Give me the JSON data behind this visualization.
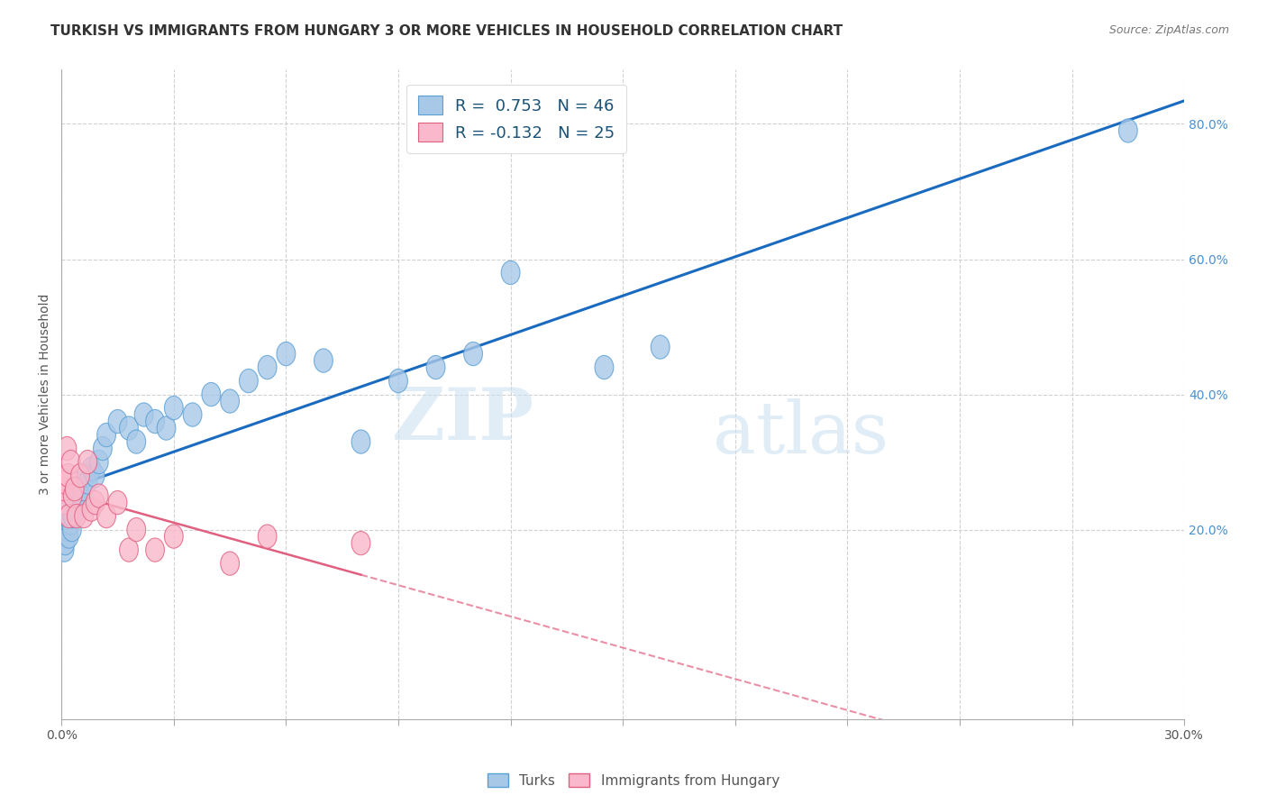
{
  "title": "TURKISH VS IMMIGRANTS FROM HUNGARY 3 OR MORE VEHICLES IN HOUSEHOLD CORRELATION CHART",
  "source": "Source: ZipAtlas.com",
  "ylabel": "3 or more Vehicles in Household",
  "xlim": [
    0.0,
    30.0
  ],
  "ylim": [
    -8.0,
    88.0
  ],
  "right_yticks": [
    20.0,
    40.0,
    60.0,
    80.0
  ],
  "legend_blue_r": "R =  0.753",
  "legend_blue_n": "N = 46",
  "legend_pink_r": "R = -0.132",
  "legend_pink_n": "N = 25",
  "blue_color": "#a8c8e8",
  "blue_edge_color": "#5a9fd4",
  "pink_color": "#f9b8cb",
  "pink_edge_color": "#e06080",
  "blue_line_color": "#1a6bbf",
  "pink_line_color": "#e06080",
  "label_turks": "Turks",
  "label_hungary": "Immigrants from Hungary",
  "turks_x": [
    0.05,
    0.08,
    0.1,
    0.12,
    0.15,
    0.18,
    0.2,
    0.22,
    0.25,
    0.28,
    0.3,
    0.35,
    0.4,
    0.45,
    0.5,
    0.55,
    0.6,
    0.65,
    0.7,
    0.8,
    0.9,
    1.0,
    1.1,
    1.2,
    1.5,
    1.8,
    2.0,
    2.2,
    2.5,
    2.8,
    3.0,
    3.5,
    4.0,
    4.5,
    5.0,
    5.5,
    6.0,
    7.0,
    8.0,
    9.0,
    10.0,
    11.0,
    12.0,
    14.5,
    16.0,
    28.5
  ],
  "turks_y": [
    19.0,
    17.0,
    18.0,
    21.0,
    20.0,
    22.0,
    19.0,
    23.0,
    21.0,
    20.0,
    22.0,
    24.0,
    23.0,
    26.0,
    25.0,
    24.0,
    26.0,
    28.0,
    27.0,
    29.0,
    28.0,
    30.0,
    32.0,
    34.0,
    36.0,
    35.0,
    33.0,
    37.0,
    36.0,
    35.0,
    38.0,
    37.0,
    40.0,
    39.0,
    42.0,
    44.0,
    46.0,
    45.0,
    33.0,
    42.0,
    44.0,
    46.0,
    58.0,
    44.0,
    47.0,
    79.0
  ],
  "hungary_x": [
    0.05,
    0.08,
    0.1,
    0.15,
    0.18,
    0.2,
    0.25,
    0.3,
    0.35,
    0.4,
    0.5,
    0.6,
    0.7,
    0.8,
    0.9,
    1.0,
    1.2,
    1.5,
    1.8,
    2.0,
    2.5,
    3.0,
    4.5,
    5.5,
    8.0
  ],
  "hungary_y": [
    24.0,
    26.0,
    27.0,
    32.0,
    28.0,
    22.0,
    30.0,
    25.0,
    26.0,
    22.0,
    28.0,
    22.0,
    30.0,
    23.0,
    24.0,
    25.0,
    22.0,
    24.0,
    17.0,
    20.0,
    17.0,
    19.0,
    15.0,
    19.0,
    18.0
  ],
  "watermark_zip": "ZIP",
  "watermark_atlas": "atlas",
  "background_color": "#ffffff",
  "grid_color": "#cccccc",
  "xtick_positions": [
    0.0,
    3.0,
    6.0,
    9.0,
    12.0,
    15.0,
    18.0,
    21.0,
    24.0,
    27.0,
    30.0
  ]
}
